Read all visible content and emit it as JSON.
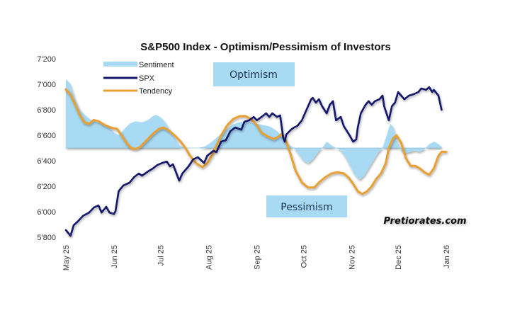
{
  "chart_data": {
    "type": "line",
    "title": "S&P500 Index - Optimism/Pessimism of Investors",
    "xlabel": "",
    "ylabel": "",
    "x_unit": "days since May 1, 2025",
    "xlim": [
      0,
      245
    ],
    "ylim": [
      5800,
      7200
    ],
    "grid": false,
    "legend_position": "top-left",
    "yticks": [
      {
        "value": 7200,
        "label": "7'200"
      },
      {
        "value": 7000,
        "label": "7'000"
      },
      {
        "value": 6800,
        "label": "6'800"
      },
      {
        "value": 6600,
        "label": "6'600"
      },
      {
        "value": 6400,
        "label": "6'400"
      },
      {
        "value": 6200,
        "label": "6'200"
      },
      {
        "value": 6000,
        "label": "6'000"
      },
      {
        "value": 5800,
        "label": "5'800"
      }
    ],
    "xticks": [
      {
        "value": 0,
        "label": "May 25"
      },
      {
        "value": 31,
        "label": "Jun 25"
      },
      {
        "value": 61,
        "label": "Jul 25"
      },
      {
        "value": 92,
        "label": "Aug 25"
      },
      {
        "value": 123,
        "label": "Sep 25"
      },
      {
        "value": 153,
        "label": "Oct 25"
      },
      {
        "value": 184,
        "label": "Nov 25"
      },
      {
        "value": 214,
        "label": "Dec 25"
      },
      {
        "value": 245,
        "label": "Jan 26"
      }
    ],
    "sentiment_baseline": 6500,
    "series": [
      {
        "name": "Sentiment",
        "kind": "area",
        "color": "#8fd3f4",
        "points": [
          [
            0,
            7040
          ],
          [
            3,
            7000
          ],
          [
            6,
            6880
          ],
          [
            9,
            6800
          ],
          [
            12,
            6760
          ],
          [
            16,
            6720
          ],
          [
            20,
            6700
          ],
          [
            24,
            6690
          ],
          [
            28,
            6660
          ],
          [
            31,
            6620
          ],
          [
            34,
            6600
          ],
          [
            37,
            6640
          ],
          [
            41,
            6690
          ],
          [
            45,
            6710
          ],
          [
            49,
            6700
          ],
          [
            53,
            6720
          ],
          [
            56,
            6750
          ],
          [
            58,
            6760
          ],
          [
            61,
            6740
          ],
          [
            64,
            6700
          ],
          [
            67,
            6640
          ],
          [
            70,
            6580
          ],
          [
            73,
            6520
          ],
          [
            76,
            6500
          ],
          [
            80,
            6500
          ],
          [
            85,
            6500
          ],
          [
            89,
            6510
          ],
          [
            92,
            6530
          ],
          [
            95,
            6560
          ],
          [
            99,
            6600
          ],
          [
            103,
            6640
          ],
          [
            107,
            6680
          ],
          [
            111,
            6700
          ],
          [
            115,
            6710
          ],
          [
            119,
            6700
          ],
          [
            123,
            6690
          ],
          [
            127,
            6680
          ],
          [
            131,
            6670
          ],
          [
            135,
            6640
          ],
          [
            139,
            6600
          ],
          [
            141,
            6560
          ],
          [
            144,
            6520
          ],
          [
            147,
            6500
          ],
          [
            150,
            6450
          ],
          [
            153,
            6400
          ],
          [
            156,
            6380
          ],
          [
            159,
            6410
          ],
          [
            162,
            6460
          ],
          [
            165,
            6500
          ],
          [
            168,
            6550
          ],
          [
            171,
            6520
          ],
          [
            174,
            6500
          ],
          [
            177,
            6480
          ],
          [
            180,
            6430
          ],
          [
            183,
            6360
          ],
          [
            186,
            6290
          ],
          [
            189,
            6250
          ],
          [
            192,
            6280
          ],
          [
            195,
            6340
          ],
          [
            198,
            6400
          ],
          [
            201,
            6460
          ],
          [
            204,
            6500
          ],
          [
            207,
            6610
          ],
          [
            209,
            6690
          ],
          [
            211,
            6660
          ],
          [
            213,
            6560
          ],
          [
            216,
            6480
          ],
          [
            219,
            6460
          ],
          [
            222,
            6470
          ],
          [
            225,
            6480
          ],
          [
            228,
            6470
          ],
          [
            231,
            6490
          ],
          [
            234,
            6530
          ],
          [
            237,
            6550
          ],
          [
            240,
            6530
          ],
          [
            242,
            6510
          ]
        ]
      },
      {
        "name": "SPX",
        "kind": "line",
        "color": "#12196b",
        "points": [
          [
            0,
            5856
          ],
          [
            3,
            5811
          ],
          [
            5,
            5894
          ],
          [
            8,
            5928
          ],
          [
            11,
            5967
          ],
          [
            15,
            5994
          ],
          [
            18,
            6033
          ],
          [
            21,
            6050
          ],
          [
            23,
            5994
          ],
          [
            26,
            6039
          ],
          [
            28,
            5994
          ],
          [
            31,
            5983
          ],
          [
            32,
            6006
          ],
          [
            34,
            6161
          ],
          [
            37,
            6206
          ],
          [
            41,
            6228
          ],
          [
            44,
            6272
          ],
          [
            47,
            6300
          ],
          [
            49,
            6283
          ],
          [
            51,
            6300
          ],
          [
            53,
            6317
          ],
          [
            56,
            6339
          ],
          [
            59,
            6367
          ],
          [
            62,
            6383
          ],
          [
            65,
            6394
          ],
          [
            67,
            6356
          ],
          [
            69,
            6372
          ],
          [
            73,
            6244
          ],
          [
            75,
            6300
          ],
          [
            79,
            6356
          ],
          [
            82,
            6411
          ],
          [
            85,
            6428
          ],
          [
            89,
            6383
          ],
          [
            91,
            6439
          ],
          [
            95,
            6478
          ],
          [
            97,
            6467
          ],
          [
            100,
            6550
          ],
          [
            103,
            6561
          ],
          [
            106,
            6633
          ],
          [
            109,
            6661
          ],
          [
            113,
            6644
          ],
          [
            115,
            6706
          ],
          [
            118,
            6717
          ],
          [
            121,
            6744
          ],
          [
            123,
            6717
          ],
          [
            126,
            6744
          ],
          [
            129,
            6772
          ],
          [
            131,
            6744
          ],
          [
            133,
            6772
          ],
          [
            136,
            6744
          ],
          [
            138,
            6756
          ],
          [
            140,
            6578
          ],
          [
            141,
            6550
          ],
          [
            142,
            6606
          ],
          [
            145,
            6644
          ],
          [
            147,
            6661
          ],
          [
            149,
            6672
          ],
          [
            152,
            6717
          ],
          [
            154,
            6772
          ],
          [
            156,
            6828
          ],
          [
            158,
            6883
          ],
          [
            159,
            6894
          ],
          [
            161,
            6856
          ],
          [
            163,
            6883
          ],
          [
            165,
            6828
          ],
          [
            168,
            6772
          ],
          [
            170,
            6839
          ],
          [
            172,
            6867
          ],
          [
            174,
            6717
          ],
          [
            177,
            6744
          ],
          [
            179,
            6672
          ],
          [
            181,
            6633
          ],
          [
            183,
            6594
          ],
          [
            185,
            6550
          ],
          [
            187,
            6567
          ],
          [
            188,
            6661
          ],
          [
            190,
            6772
          ],
          [
            193,
            6839
          ],
          [
            195,
            6867
          ],
          [
            197,
            6839
          ],
          [
            199,
            6867
          ],
          [
            202,
            6883
          ],
          [
            204,
            6911
          ],
          [
            205,
            6828
          ],
          [
            208,
            6717
          ],
          [
            210,
            6828
          ],
          [
            212,
            6856
          ],
          [
            214,
            6939
          ],
          [
            218,
            6883
          ],
          [
            221,
            6911
          ],
          [
            224,
            6922
          ],
          [
            227,
            6939
          ],
          [
            229,
            6967
          ],
          [
            232,
            6956
          ],
          [
            234,
            6978
          ],
          [
            236,
            6939
          ],
          [
            237,
            6956
          ],
          [
            240,
            6911
          ],
          [
            242,
            6800
          ]
        ]
      },
      {
        "name": "Tendency",
        "kind": "line",
        "color": "#e8a030",
        "points": [
          [
            0,
            6960
          ],
          [
            3,
            6920
          ],
          [
            6,
            6840
          ],
          [
            9,
            6760
          ],
          [
            12,
            6700
          ],
          [
            15,
            6690
          ],
          [
            18,
            6720
          ],
          [
            21,
            6710
          ],
          [
            25,
            6680
          ],
          [
            29,
            6660
          ],
          [
            33,
            6650
          ],
          [
            36,
            6600
          ],
          [
            39,
            6540
          ],
          [
            42,
            6500
          ],
          [
            45,
            6490
          ],
          [
            48,
            6510
          ],
          [
            52,
            6560
          ],
          [
            56,
            6610
          ],
          [
            60,
            6650
          ],
          [
            63,
            6660
          ],
          [
            66,
            6640
          ],
          [
            70,
            6600
          ],
          [
            74,
            6550
          ],
          [
            77,
            6500
          ],
          [
            80,
            6440
          ],
          [
            84,
            6380
          ],
          [
            88,
            6350
          ],
          [
            91,
            6380
          ],
          [
            94,
            6440
          ],
          [
            97,
            6520
          ],
          [
            100,
            6600
          ],
          [
            104,
            6680
          ],
          [
            108,
            6730
          ],
          [
            112,
            6750
          ],
          [
            116,
            6750
          ],
          [
            120,
            6720
          ],
          [
            123,
            6680
          ],
          [
            126,
            6620
          ],
          [
            130,
            6590
          ],
          [
            134,
            6570
          ],
          [
            137,
            6590
          ],
          [
            139,
            6610
          ],
          [
            142,
            6550
          ],
          [
            145,
            6440
          ],
          [
            148,
            6320
          ],
          [
            152,
            6230
          ],
          [
            156,
            6190
          ],
          [
            160,
            6190
          ],
          [
            163,
            6230
          ],
          [
            167,
            6270
          ],
          [
            171,
            6300
          ],
          [
            175,
            6310
          ],
          [
            179,
            6300
          ],
          [
            182,
            6270
          ],
          [
            185,
            6220
          ],
          [
            188,
            6160
          ],
          [
            191,
            6140
          ],
          [
            194,
            6160
          ],
          [
            197,
            6200
          ],
          [
            200,
            6260
          ],
          [
            203,
            6300
          ],
          [
            206,
            6380
          ],
          [
            208,
            6500
          ],
          [
            211,
            6580
          ],
          [
            213,
            6600
          ],
          [
            216,
            6540
          ],
          [
            219,
            6420
          ],
          [
            222,
            6360
          ],
          [
            225,
            6360
          ],
          [
            228,
            6340
          ],
          [
            231,
            6310
          ],
          [
            234,
            6290
          ],
          [
            237,
            6340
          ],
          [
            240,
            6440
          ],
          [
            242,
            6470
          ],
          [
            245,
            6470
          ]
        ]
      }
    ],
    "annotations": [
      {
        "text": "Optimism",
        "style": "box"
      },
      {
        "text": "Pessimism",
        "style": "box"
      },
      {
        "text": "Pretiorates.com",
        "style": "watermark"
      }
    ]
  },
  "legend": {
    "items": [
      {
        "label": "Sentiment",
        "color": "#8fd3f4"
      },
      {
        "label": "SPX",
        "color": "#12196b"
      },
      {
        "label": "Tendency",
        "color": "#e8a030"
      }
    ]
  },
  "colors": {
    "box_fill": "#8fd3f4",
    "box_text": "#1d3557"
  }
}
